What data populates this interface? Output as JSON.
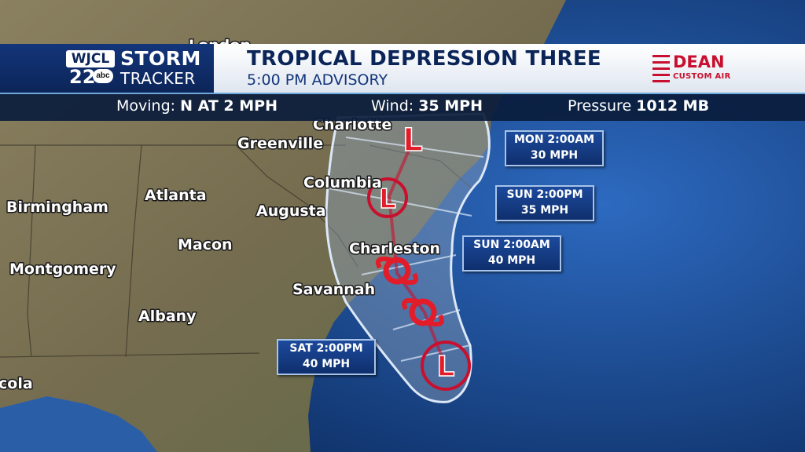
{
  "station": {
    "call_letters": "WJCL",
    "channel": "22",
    "network": "abc",
    "brand_line1": "STORM",
    "brand_line2": "TRACKER"
  },
  "header": {
    "title": "TROPICAL DEPRESSION THREE",
    "subtitle": "5:00 PM ADVISORY"
  },
  "sponsor": {
    "name": "DEAN",
    "tagline": "CUSTOM AIR"
  },
  "stats": [
    {
      "label": "Moving:",
      "value": "N AT 2 MPH"
    },
    {
      "label": "Wind:",
      "value": "35 MPH"
    },
    {
      "label": "Pressure",
      "value": "1012 MB"
    }
  ],
  "cities": [
    "Charlotte",
    "Greenville",
    "Columbia",
    "Atlanta",
    "Augusta",
    "Birmingham",
    "Macon",
    "Charleston",
    "Montgomery",
    "Savannah",
    "Albany",
    "cola",
    "London"
  ],
  "forecast": [
    {
      "time": "SAT 2:00PM",
      "wind": "40 MPH",
      "symbol": "L"
    },
    {
      "time": "SUN 2:00AM",
      "wind": "40 MPH",
      "symbol": "storm"
    },
    {
      "time": "SUN 2:00PM",
      "wind": "35 MPH",
      "symbol": "storm"
    },
    {
      "time": "MON 2:00AM",
      "wind": "30 MPH",
      "symbol": "L"
    }
  ],
  "colors": {
    "header_blue": "#0c2559",
    "accent_red": "#c8102e",
    "ocean": "#1d4f8f",
    "land": "#7d7558",
    "cone": "#a8c4e8"
  }
}
